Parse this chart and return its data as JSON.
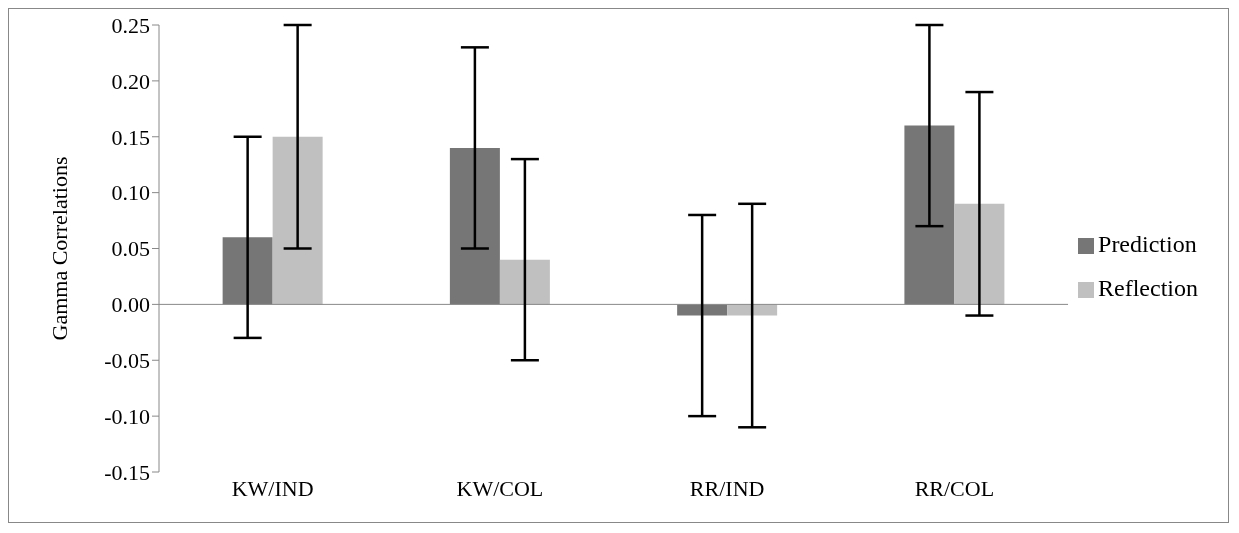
{
  "chart_data": {
    "type": "bar",
    "ylabel": "Gamma Correlations",
    "categories": [
      "KW/IND",
      "KW/COL",
      "RR/IND",
      "RR/COL"
    ],
    "series": [
      {
        "name": "Prediction",
        "color": "#767676",
        "values": [
          0.06,
          0.14,
          -0.01,
          0.16
        ],
        "errors": [
          [
            -0.03,
            0.15
          ],
          [
            0.05,
            0.23
          ],
          [
            -0.1,
            0.08
          ],
          [
            0.07,
            0.25
          ]
        ]
      },
      {
        "name": "Reflection",
        "color": "#c0c0c0",
        "values": [
          0.15,
          0.04,
          -0.01,
          0.09
        ],
        "errors": [
          [
            0.05,
            0.25
          ],
          [
            -0.05,
            0.13
          ],
          [
            -0.11,
            0.09
          ],
          [
            -0.01,
            0.19
          ]
        ]
      }
    ],
    "ylim": [
      -0.15,
      0.25
    ],
    "yticks": [
      {
        "value": -0.15,
        "label": "-0.15"
      },
      {
        "value": -0.1,
        "label": "-0.10"
      },
      {
        "value": -0.05,
        "label": "-0.05"
      },
      {
        "value": 0,
        "label": "0.00"
      },
      {
        "value": 0.05,
        "label": "0.05"
      },
      {
        "value": 0.1,
        "label": "0.10"
      },
      {
        "value": 0.15,
        "label": "0.15"
      },
      {
        "value": 0.2,
        "label": "0.20"
      },
      {
        "value": 0.25,
        "label": "0.25"
      }
    ],
    "legend": "right"
  }
}
